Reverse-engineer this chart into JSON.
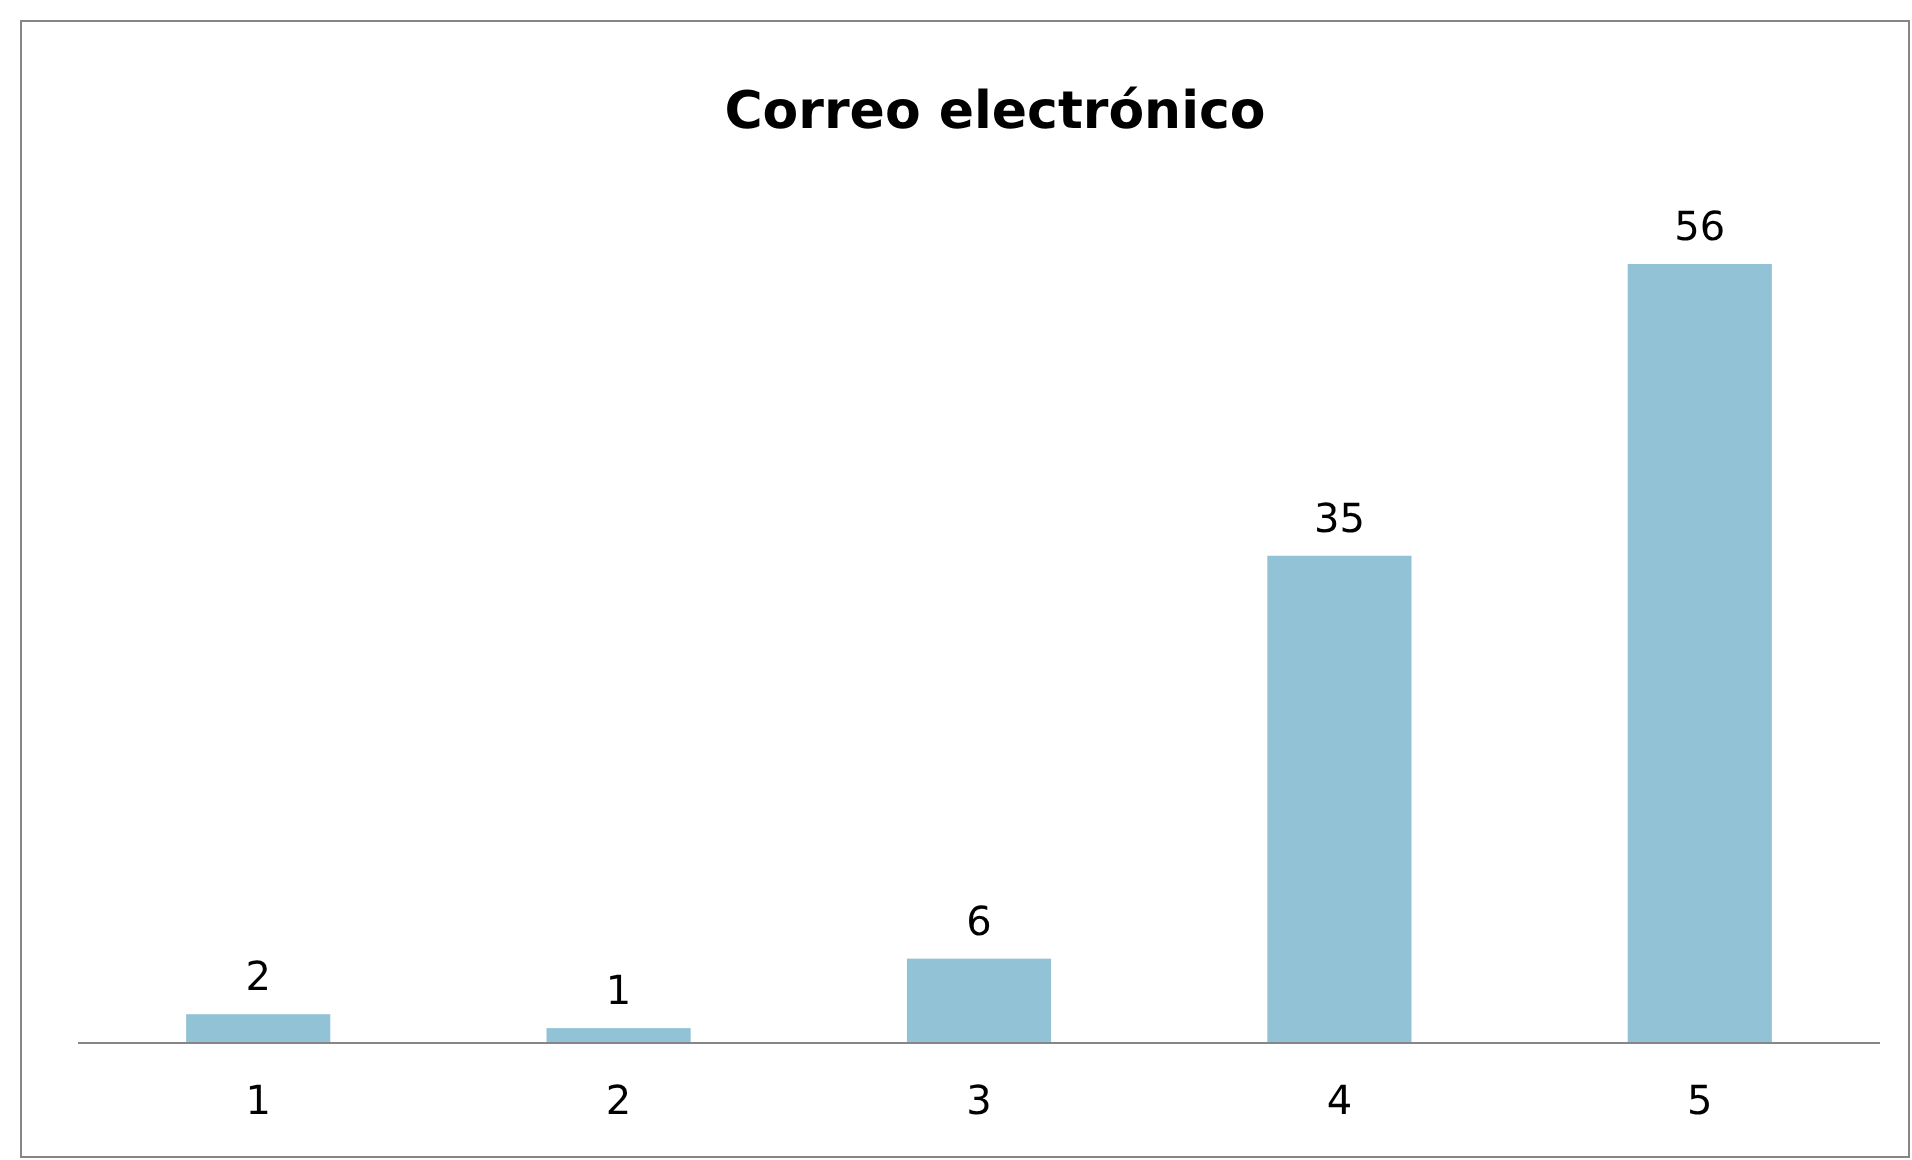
{
  "chart_data": {
    "type": "bar",
    "title": "Correo electrónico",
    "categories": [
      "1",
      "2",
      "3",
      "4",
      "5"
    ],
    "values": [
      2,
      1,
      6,
      35,
      56
    ],
    "color": "#92c2d5",
    "data_labels": true
  }
}
